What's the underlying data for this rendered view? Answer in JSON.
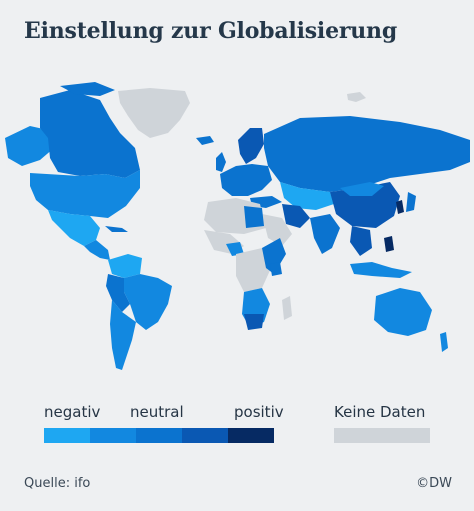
{
  "title": "Einstellung zur Globalisierung",
  "legend": {
    "items": [
      {
        "label": "negativ",
        "color": "#1ea7f2"
      },
      {
        "label": "",
        "color": "#1288e0"
      },
      {
        "label": "neutral",
        "color": "#0b73cf"
      },
      {
        "label": "",
        "color": "#0a58b3"
      },
      {
        "label": "positiv",
        "color": "#062a63"
      }
    ],
    "no_data": {
      "label": "Keine Daten",
      "color": "#cfd4d9"
    }
  },
  "footer": {
    "source": "Quelle: ifo",
    "copyright": "©DW"
  }
}
